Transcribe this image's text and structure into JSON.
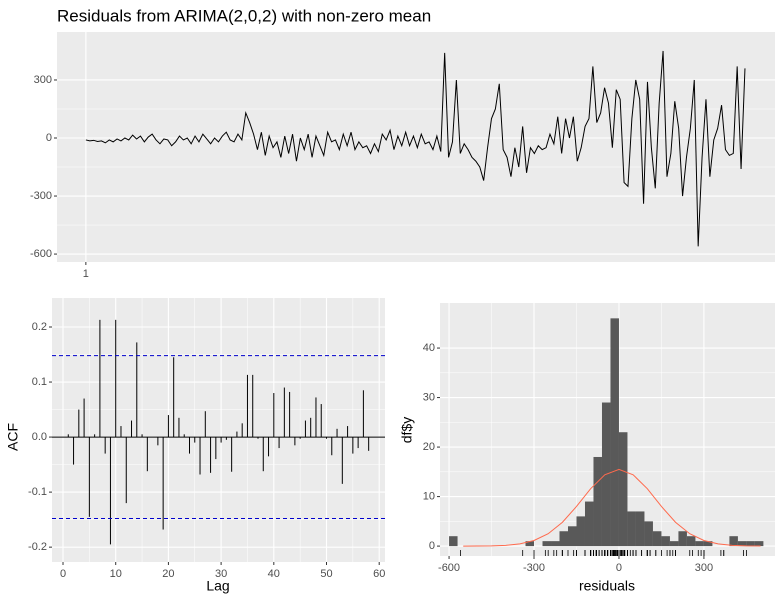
{
  "chart_data": [
    {
      "type": "line",
      "title": "Residuals from ARIMA(2,0,2) with non-zero mean",
      "color": "#000000",
      "x": [
        1,
        2,
        3,
        4,
        5,
        6,
        7,
        8,
        9,
        10,
        11,
        12,
        13,
        14,
        15,
        16,
        17,
        18,
        19,
        20,
        21,
        22,
        23,
        24,
        25,
        26,
        27,
        28,
        29,
        30,
        31,
        32,
        33,
        34,
        35,
        36,
        37,
        38,
        39,
        40,
        41,
        42,
        43,
        44,
        45,
        46,
        47,
        48,
        49,
        50,
        51,
        52,
        53,
        54,
        55,
        56,
        57,
        58,
        59,
        60,
        61,
        62,
        63,
        64,
        65,
        66,
        67,
        68,
        69,
        70,
        71,
        72,
        73,
        74,
        75,
        76,
        77,
        78,
        79,
        80,
        81,
        82,
        83,
        84,
        85,
        86,
        87,
        88,
        89,
        90,
        91,
        92,
        93,
        94,
        95,
        96,
        97,
        98,
        99,
        100,
        101,
        102,
        103,
        104,
        105,
        106,
        107,
        108,
        109,
        110,
        111,
        112,
        113,
        114,
        115,
        116,
        117,
        118,
        119,
        120,
        121,
        122,
        123,
        124,
        125,
        126,
        127,
        128,
        129,
        130,
        131,
        132,
        133,
        134,
        135,
        136,
        137,
        138,
        139,
        140,
        141,
        142,
        143,
        144,
        145,
        146,
        147,
        148,
        149,
        150,
        151,
        152,
        153,
        154,
        155,
        156,
        157,
        158,
        159,
        160,
        161,
        162,
        163,
        164,
        165,
        166,
        167,
        168,
        169,
        170
      ],
      "values": [
        -10,
        -15,
        -12,
        -18,
        -15,
        -25,
        -10,
        -20,
        -5,
        -15,
        0,
        -10,
        15,
        -5,
        10,
        -20,
        5,
        20,
        -10,
        -30,
        -5,
        -10,
        -40,
        -20,
        10,
        -10,
        0,
        -30,
        10,
        -20,
        20,
        -5,
        -30,
        0,
        -20,
        10,
        30,
        -10,
        -20,
        20,
        -10,
        130,
        80,
        20,
        -60,
        30,
        -90,
        10,
        -50,
        -20,
        -100,
        10,
        -80,
        20,
        -120,
        0,
        -60,
        20,
        -100,
        10,
        -40,
        -90,
        30,
        -20,
        -10,
        -60,
        20,
        -40,
        30,
        -60,
        -20,
        -50,
        -40,
        -80,
        -30,
        -70,
        20,
        -10,
        40,
        -60,
        10,
        -40,
        30,
        -40,
        10,
        -50,
        20,
        -30,
        -20,
        -60,
        10,
        -70,
        440,
        -100,
        -20,
        300,
        -80,
        -30,
        -60,
        -100,
        -120,
        -150,
        -220,
        -50,
        100,
        150,
        280,
        -60,
        -100,
        -200,
        -50,
        -150,
        60,
        -180,
        -50,
        -80,
        -40,
        -60,
        -50,
        20,
        -30,
        110,
        -80,
        100,
        0,
        110,
        -120,
        -50,
        60,
        100,
        370,
        80,
        130,
        260,
        180,
        -50,
        250,
        200,
        -230,
        -250,
        100,
        300,
        200,
        -340,
        290,
        -50,
        -260,
        180,
        450,
        -200,
        -80,
        190,
        50,
        -300,
        -100,
        50,
        300,
        -560,
        -100,
        200,
        -200,
        -10,
        50,
        170,
        -60,
        -90,
        -80,
        370,
        -160,
        360
      ],
      "xlim": [
        -6.4,
        177.7
      ],
      "ylim": [
        -641,
        548
      ],
      "xticks": [
        1
      ],
      "yticks": [
        300,
        0,
        -300,
        -600
      ],
      "grid": true
    },
    {
      "type": "bar",
      "x_label": "Lag",
      "y_label": "ACF",
      "color": "#000000",
      "x": [
        1,
        2,
        3,
        4,
        5,
        6,
        7,
        8,
        9,
        10,
        11,
        12,
        13,
        14,
        15,
        16,
        17,
        18,
        19,
        20,
        21,
        22,
        23,
        24,
        25,
        26,
        27,
        28,
        29,
        30,
        31,
        32,
        33,
        34,
        35,
        36,
        37,
        38,
        39,
        40,
        41,
        42,
        43,
        44,
        45,
        46,
        47,
        48,
        49,
        50,
        51,
        52,
        53,
        54,
        55,
        56,
        57,
        58
      ],
      "values": [
        0.005,
        -0.05,
        0.05,
        0.07,
        -0.145,
        0.005,
        0.213,
        -0.03,
        -0.195,
        0.213,
        0.02,
        -0.12,
        0.03,
        0.172,
        0.005,
        -0.062,
        0.0,
        -0.015,
        -0.168,
        0.04,
        0.145,
        0.035,
        0.005,
        -0.03,
        -0.01,
        -0.068,
        0.047,
        -0.065,
        -0.04,
        -0.01,
        -0.005,
        -0.063,
        0.01,
        0.025,
        0.113,
        0.113,
        -0.003,
        -0.062,
        -0.035,
        0.08,
        -0.02,
        0.09,
        0.082,
        -0.015,
        -0.003,
        0.03,
        0.035,
        0.072,
        0.06,
        -0.003,
        -0.033,
        0.015,
        -0.085,
        0.02,
        -0.03,
        -0.02,
        0.085,
        -0.025
      ],
      "hlines": [
        0.148,
        -0.148
      ],
      "hline_color": "#0000cc",
      "xlim": [
        -2.09,
        61.1
      ],
      "ylim": [
        -0.227,
        0.2527
      ],
      "xticks": [
        0,
        10,
        20,
        30,
        40,
        50,
        60
      ],
      "yticks": [
        -0.2,
        -0.1,
        {
          "value": 0,
          "label": "0.0"
        },
        0.1,
        0.2
      ],
      "grid": true
    },
    {
      "type": "histogram",
      "x_label": "residuals",
      "y_label": "df$y",
      "color": "#595959",
      "bins": [
        -600,
        -570,
        -540,
        -510,
        -480,
        -450,
        -420,
        -390,
        -360,
        -330,
        -300,
        -270,
        -240,
        -210,
        -180,
        -150,
        -120,
        -90,
        -60,
        -30,
        0,
        30,
        60,
        90,
        120,
        150,
        180,
        210,
        240,
        270,
        300,
        330,
        360,
        390,
        420,
        450,
        480,
        510
      ],
      "counts": [
        2,
        0,
        0,
        0,
        0,
        0,
        0,
        0,
        0,
        1,
        0,
        1,
        1,
        3,
        4,
        6,
        9,
        18,
        29,
        46,
        23,
        7,
        7,
        5,
        3,
        2,
        1,
        3,
        2,
        1,
        1,
        0,
        0,
        2,
        1,
        1,
        1
      ],
      "curve": {
        "color": "#ff6a4d",
        "x": [
          -550,
          -500,
          -450,
          -400,
          -350,
          -300,
          -250,
          -200,
          -150,
          -100,
          -50,
          0,
          50,
          100,
          150,
          200,
          250,
          300,
          350,
          400,
          450,
          500
        ],
        "y": [
          0,
          0.01,
          0.04,
          0.15,
          0.44,
          1.13,
          2.5,
          4.8,
          8,
          11.6,
          14.4,
          15.5,
          14.4,
          11.6,
          8,
          4.8,
          2.5,
          1.13,
          0.44,
          0.15,
          0.04,
          0.01
        ]
      },
      "rug_color": "#000000",
      "xlim": [
        -632,
        551
      ],
      "ylim": [
        -2,
        49.1
      ],
      "xticks": [
        -600,
        -300,
        0,
        300
      ],
      "yticks": [
        0,
        10,
        20,
        30,
        40
      ],
      "grid": true
    }
  ]
}
